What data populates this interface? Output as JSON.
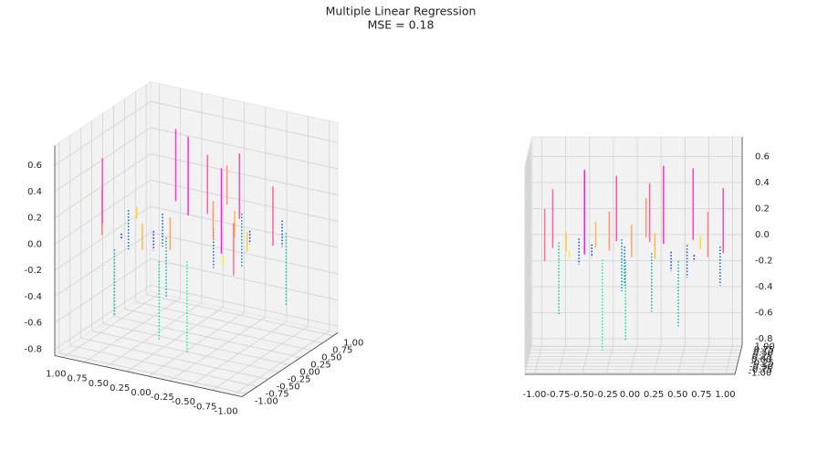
{
  "chart_data": {
    "type": "residual3d",
    "title": "Multiple Linear Regression",
    "subtitle": "MSE = 0.18",
    "x": [
      0.8,
      0.9,
      0.6,
      0.5,
      0.3,
      0.2,
      0.1,
      0.0,
      -0.1,
      -0.2,
      -0.3,
      -0.4,
      -0.5,
      -0.6,
      -0.7,
      -0.8,
      -0.9,
      0.7,
      0.4,
      0.15,
      -0.05,
      -0.25,
      -0.45,
      -0.65,
      0.95,
      0.55,
      -0.85,
      0.25,
      -0.15,
      0.65
    ],
    "y": [
      -0.6,
      0.2,
      0.7,
      -0.9,
      0.4,
      -0.3,
      0.9,
      -0.6,
      0.2,
      0.6,
      -0.8,
      0.1,
      -0.4,
      0.8,
      -0.2,
      0.5,
      -0.9,
      0.0,
      -0.2,
      0.55,
      -0.95,
      -0.1,
      0.35,
      -0.65,
      -0.3,
      0.3,
      0.1,
      -0.75,
      0.75,
      -0.45
    ],
    "values": [
      0.35,
      -0.3,
      0.55,
      -0.5,
      0.6,
      -0.45,
      0.3,
      0.25,
      -0.3,
      0.5,
      -0.7,
      0.2,
      0.65,
      -0.2,
      0.15,
      -0.55,
      0.4,
      0.1,
      -0.15,
      0.45,
      -0.6,
      0.3,
      -0.1,
      0.05,
      0.5,
      -0.25,
      0.45,
      0.2,
      -0.4,
      -0.05
    ],
    "xlim": [
      -1.1,
      1.1
    ],
    "ylim": [
      -1.1,
      1.1
    ],
    "zlim": [
      -0.85,
      0.75
    ],
    "xticks": [
      {
        "value": -1,
        "label": "-1.00"
      },
      {
        "value": -0.75,
        "label": "-0.75"
      },
      {
        "value": -0.5,
        "label": "-0.50"
      },
      {
        "value": -0.25,
        "label": "-0.25"
      },
      {
        "value": 0,
        "label": "0.00"
      },
      {
        "value": 0.25,
        "label": "0.25"
      },
      {
        "value": 0.5,
        "label": "0.50"
      },
      {
        "value": 0.75,
        "label": "0.75"
      },
      {
        "value": 1,
        "label": "1.00"
      }
    ],
    "yticks": [
      {
        "value": -1,
        "label": "-1.00"
      },
      {
        "value": -0.75,
        "label": "-0.75"
      },
      {
        "value": -0.5,
        "label": "-0.50"
      },
      {
        "value": -0.25,
        "label": "-0.25"
      },
      {
        "value": 0,
        "label": "0.00"
      },
      {
        "value": 0.25,
        "label": "0.25"
      },
      {
        "value": 0.5,
        "label": "0.50"
      },
      {
        "value": 0.75,
        "label": "0.75"
      },
      {
        "value": 1,
        "label": "1.00"
      }
    ],
    "zticks": [
      -0.8,
      -0.6,
      -0.4,
      -0.2,
      {
        "value": 0,
        "label": "0.0"
      },
      0.2,
      0.4,
      0.6
    ],
    "positive_colormap": "spring",
    "negative_colormap": "winter",
    "negative_linestyle": "dotted",
    "grid": true
  }
}
